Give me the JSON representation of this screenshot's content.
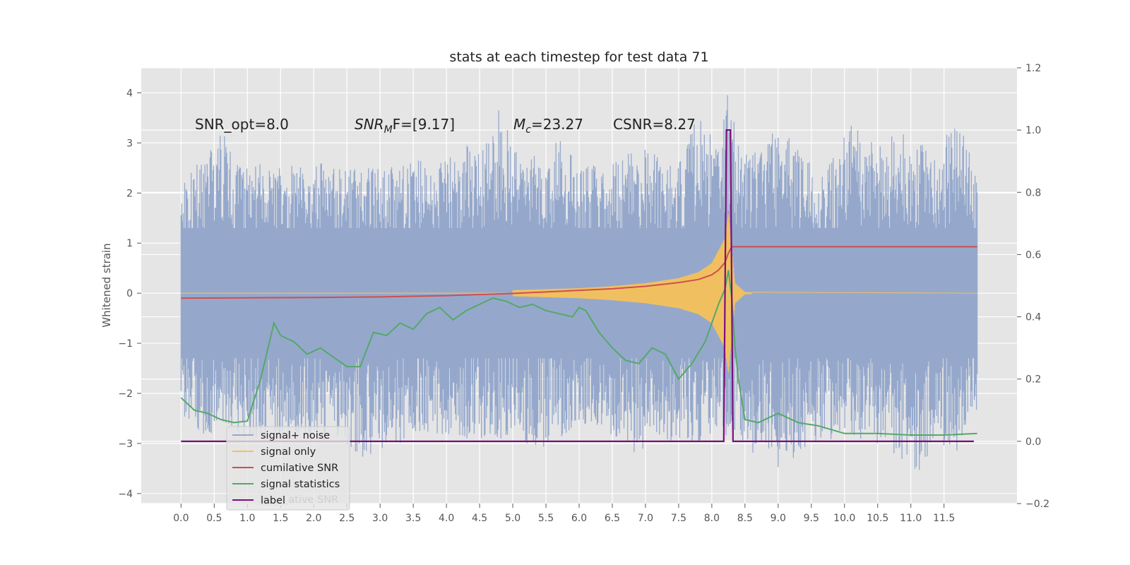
{
  "chart_data": {
    "type": "line",
    "title": "stats at each timestep for test data 71",
    "ylabel": "Whitened strain",
    "xlim": [
      -0.6,
      12.6
    ],
    "ylim": [
      -4.2,
      4.5
    ],
    "y2lim": [
      -0.2,
      1.2
    ],
    "xticks": [
      "0.0",
      "0.5",
      "1.0",
      "1.5",
      "2.0",
      "2.5",
      "3.0",
      "3.5",
      "4.0",
      "4.5",
      "5.0",
      "5.5",
      "6.0",
      "6.5",
      "7.0",
      "7.5",
      "8.0",
      "8.5",
      "9.0",
      "9.5",
      "10.0",
      "10.5",
      "11.0",
      "11.5"
    ],
    "yticks": [
      "4",
      "3",
      "2",
      "1",
      "0",
      "−1",
      "−2",
      "−3",
      "−4"
    ],
    "y2ticks": [
      "1.2",
      "1.0",
      "0.8",
      "0.6",
      "0.4",
      "0.2",
      "0.0",
      "−0.2"
    ],
    "grid": true,
    "legend_position": "lower-left",
    "annotations": {
      "snr_opt": "SNR_opt=8.0",
      "snr_mf_main": "SNR",
      "snr_mf_sub": "M",
      "snr_mf_rest": "F=[9.17]",
      "mc_main": "M",
      "mc_sub": "c",
      "mc_rest": "=23.27",
      "csnr": "CSNR=8.27"
    },
    "legend": {
      "signal_noise": "signal+ noise",
      "signal_only": "signal only",
      "cum_snr": "cumilative SNR",
      "signal_stats": "signal statistics",
      "label": "label",
      "hidden_entry": "cumilative SNR"
    },
    "colors": {
      "signal_noise": "#95a8cc",
      "signal_only": "#f0c060",
      "cum_snr": "#d04e4e",
      "signal_stats": "#55a868",
      "label": "#7b0f7b",
      "plot_bg": "#e5e5e5",
      "grid": "#ffffff"
    },
    "series": [
      {
        "name": "signal+ noise",
        "axis": "left",
        "note": "noise band, roughly ±1.5 typical with spikes up to ~4.1",
        "x": [
          0.0,
          0.3,
          0.6,
          0.9,
          1.2,
          1.5,
          1.8,
          2.1,
          2.4,
          2.7,
          3.0,
          3.3,
          3.6,
          3.9,
          4.2,
          4.5,
          4.8,
          5.1,
          5.4,
          5.7,
          6.0,
          6.3,
          6.6,
          6.9,
          7.2,
          7.5,
          7.8,
          8.1,
          8.25,
          8.4,
          8.7,
          9.0,
          9.3,
          9.6,
          9.9,
          10.2,
          10.5,
          10.8,
          11.1,
          11.4,
          11.7,
          12.0
        ],
        "upper": [
          2.1,
          2.7,
          3.3,
          2.5,
          2.6,
          2.5,
          2.6,
          2.7,
          2.6,
          2.5,
          2.5,
          2.7,
          2.7,
          2.6,
          2.9,
          3.1,
          3.7,
          2.9,
          2.7,
          3.1,
          2.6,
          2.6,
          2.7,
          2.9,
          2.9,
          2.6,
          3.6,
          2.9,
          4.1,
          3.0,
          2.9,
          3.6,
          2.9,
          2.6,
          2.9,
          3.6,
          2.9,
          3.3,
          3.0,
          2.9,
          3.5,
          2.4
        ],
        "lower": [
          -2.4,
          -2.8,
          -2.9,
          -2.9,
          -2.9,
          -2.8,
          -2.9,
          -3.0,
          -2.9,
          -3.3,
          -3.3,
          -3.1,
          -2.8,
          -2.8,
          -2.9,
          -2.9,
          -2.9,
          -2.9,
          -3.2,
          -2.9,
          -2.6,
          -2.9,
          -3.1,
          -3.2,
          -3.0,
          -2.9,
          -3.0,
          -2.9,
          -2.9,
          -2.9,
          -3.3,
          -3.6,
          -3.2,
          -3.0,
          -2.9,
          -2.9,
          -3.0,
          -3.3,
          -3.6,
          -3.0,
          -3.2,
          -2.4
        ]
      },
      {
        "name": "signal only",
        "axis": "left",
        "note": "chirp envelope growing to merger near t=8.25 then ringdown to zero",
        "x": [
          0.0,
          2.0,
          4.0,
          5.0,
          6.0,
          6.5,
          7.0,
          7.5,
          7.8,
          8.0,
          8.1,
          8.2,
          8.25,
          8.3,
          8.35,
          8.5,
          12.0
        ],
        "envelope": [
          0.01,
          0.02,
          0.04,
          0.06,
          0.1,
          0.14,
          0.2,
          0.3,
          0.42,
          0.6,
          0.85,
          1.1,
          1.6,
          0.9,
          0.2,
          0.02,
          0.0
        ]
      },
      {
        "name": "cumilative SNR",
        "axis": "right",
        "x": [
          0.0,
          1.0,
          2.0,
          3.0,
          4.0,
          5.0,
          6.0,
          6.5,
          7.0,
          7.5,
          7.8,
          8.0,
          8.1,
          8.2,
          8.25,
          8.3,
          12.0
        ],
        "y": [
          0.46,
          0.461,
          0.462,
          0.464,
          0.468,
          0.475,
          0.485,
          0.49,
          0.498,
          0.51,
          0.52,
          0.535,
          0.55,
          0.575,
          0.605,
          0.625,
          0.625
        ]
      },
      {
        "name": "signal statistics",
        "axis": "right",
        "x": [
          0.0,
          0.2,
          0.4,
          0.6,
          0.8,
          1.0,
          1.2,
          1.4,
          1.5,
          1.7,
          1.9,
          2.1,
          2.3,
          2.5,
          2.7,
          2.9,
          3.1,
          3.3,
          3.5,
          3.7,
          3.9,
          4.1,
          4.3,
          4.5,
          4.7,
          4.9,
          5.1,
          5.3,
          5.5,
          5.7,
          5.9,
          6.0,
          6.1,
          6.3,
          6.5,
          6.7,
          6.9,
          7.1,
          7.3,
          7.5,
          7.7,
          7.9,
          8.1,
          8.2,
          8.25,
          8.3,
          8.35,
          8.4,
          8.5,
          8.7,
          9.0,
          9.3,
          9.6,
          10.0,
          10.5,
          11.0,
          11.5,
          12.0
        ],
        "y": [
          0.14,
          0.1,
          0.09,
          0.07,
          0.06,
          0.065,
          0.2,
          0.38,
          0.34,
          0.32,
          0.28,
          0.3,
          0.27,
          0.24,
          0.24,
          0.35,
          0.34,
          0.38,
          0.36,
          0.41,
          0.43,
          0.39,
          0.42,
          0.44,
          0.46,
          0.45,
          0.43,
          0.44,
          0.42,
          0.41,
          0.4,
          0.43,
          0.42,
          0.35,
          0.3,
          0.26,
          0.25,
          0.3,
          0.28,
          0.2,
          0.25,
          0.32,
          0.44,
          0.49,
          0.55,
          0.46,
          0.3,
          0.2,
          0.07,
          0.06,
          0.09,
          0.06,
          0.05,
          0.025,
          0.025,
          0.02,
          0.02,
          0.025
        ]
      },
      {
        "name": "label",
        "axis": "right",
        "x": [
          0.0,
          8.18,
          8.22,
          8.28,
          8.32,
          11.95
        ],
        "y": [
          0.0,
          0.0,
          1.0,
          1.0,
          0.0,
          0.0
        ]
      }
    ]
  }
}
